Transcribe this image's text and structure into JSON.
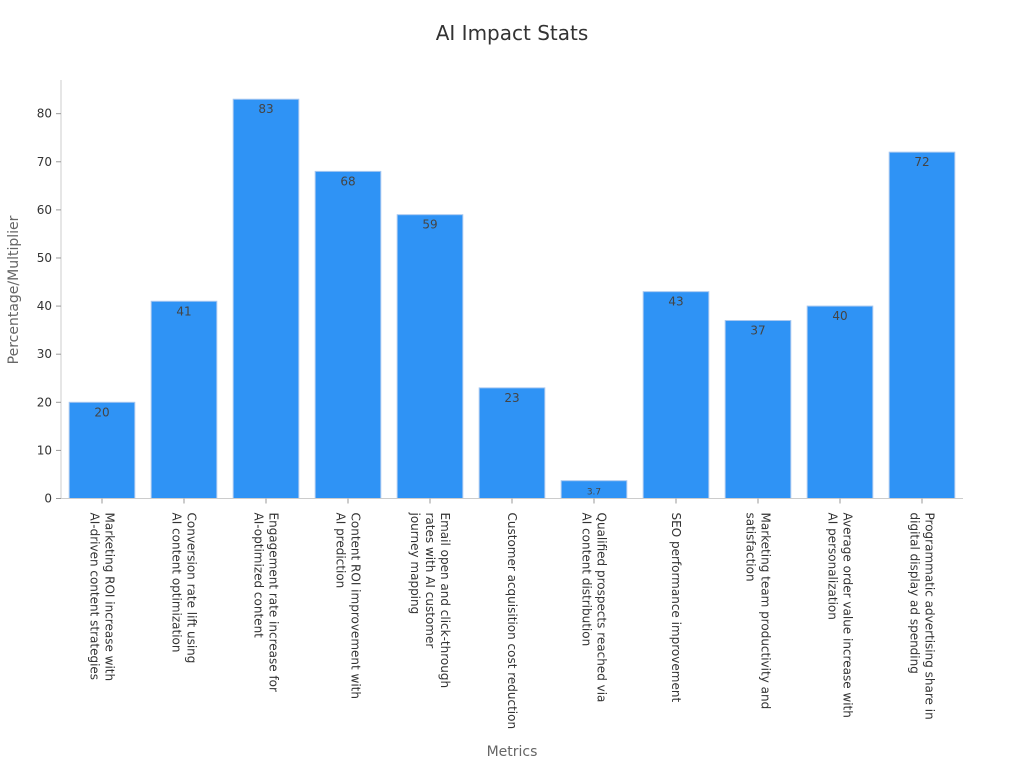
{
  "chart_data": {
    "type": "bar",
    "title": "AI Impact Stats",
    "xlabel": "Metrics",
    "ylabel": "Percentage/Multiplier",
    "ylim": [
      0,
      87
    ],
    "yticks": [
      0,
      10,
      20,
      30,
      40,
      50,
      60,
      70,
      80
    ],
    "bar_color": "#2f93f5",
    "grid": false,
    "categories": [
      [
        "Marketing ROI increase with",
        "AI-driven content strategies"
      ],
      [
        "Conversion rate lift using",
        "AI content optimization"
      ],
      [
        "Engagement rate increase for",
        "AI-optimized content"
      ],
      [
        "Content ROI improvement with",
        "AI prediction"
      ],
      [
        "Email open and click-through",
        "rates with AI customer",
        "journey mapping"
      ],
      [
        "Customer acquisition cost reduction"
      ],
      [
        "Qualified prospects reached via",
        "AI content distribution"
      ],
      [
        "SEO performance improvement"
      ],
      [
        "Marketing team productivity and",
        "satisfaction"
      ],
      [
        "Average order value increase with",
        "AI personalization"
      ],
      [
        "Programmatic advertising share in",
        "digital display ad spending"
      ]
    ],
    "values": [
      20,
      41,
      83,
      68,
      59,
      23,
      3.7,
      43,
      37,
      40,
      72
    ],
    "value_labels": [
      "20",
      "41",
      "83",
      "68",
      "59",
      "23",
      "3.7",
      "43",
      "37",
      "40",
      "72"
    ]
  }
}
